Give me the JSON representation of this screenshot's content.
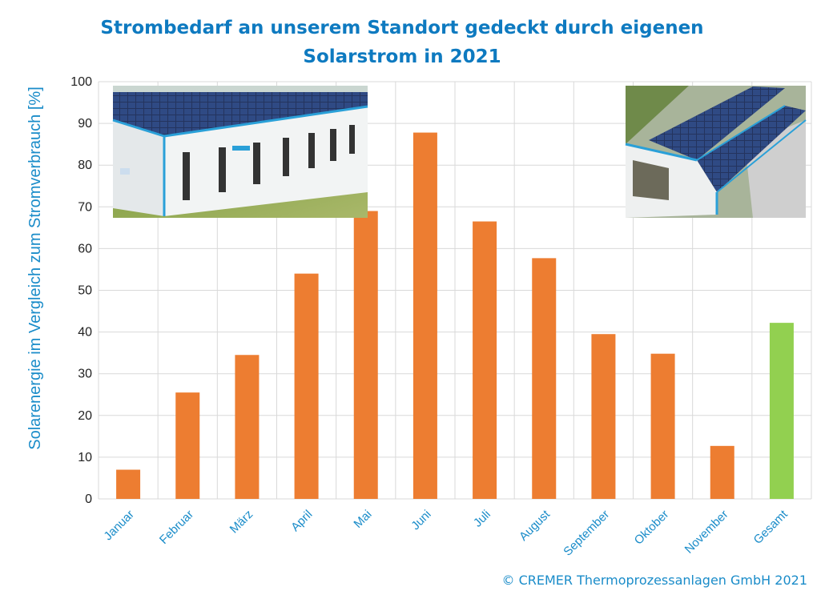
{
  "chart_data": {
    "type": "bar",
    "title_lines": [
      "Strombedarf an unserem Standort gedeckt durch eigenen",
      "Solarstrom in 2021"
    ],
    "ylabel": "Solarenergie im Vergleich zum Stromverbrauch [%]",
    "xlabel": "",
    "ylim": [
      0,
      100
    ],
    "yticks": [
      0,
      10,
      20,
      30,
      40,
      50,
      60,
      70,
      80,
      90,
      100
    ],
    "categories": [
      "Januar",
      "Februar",
      "März",
      "April",
      "Mai",
      "Juni",
      "Juli",
      "August",
      "September",
      "Oktober",
      "November",
      "Gesamt"
    ],
    "values": [
      7,
      25.5,
      34.5,
      54,
      69,
      87.8,
      66.5,
      57.7,
      39.5,
      34.8,
      12.7,
      42.2
    ],
    "bar_colors": [
      "#ED7D31",
      "#ED7D31",
      "#ED7D31",
      "#ED7D31",
      "#ED7D31",
      "#ED7D31",
      "#ED7D31",
      "#ED7D31",
      "#ED7D31",
      "#ED7D31",
      "#ED7D31",
      "#92D050"
    ],
    "grid": true,
    "legend": "none"
  },
  "footer": "© CREMER Thermoprozessanlagen GmbH 2021",
  "colors": {
    "title": "#0E7AC0",
    "axis_text": "#1A8CC9",
    "bar": "#ED7D31",
    "total_bar": "#92D050",
    "grid": "#D9D9D9"
  },
  "photos": {
    "left": "aerial photo of factory hall with solar roof",
    "right": "aerial photo of open hall with solar roof"
  }
}
